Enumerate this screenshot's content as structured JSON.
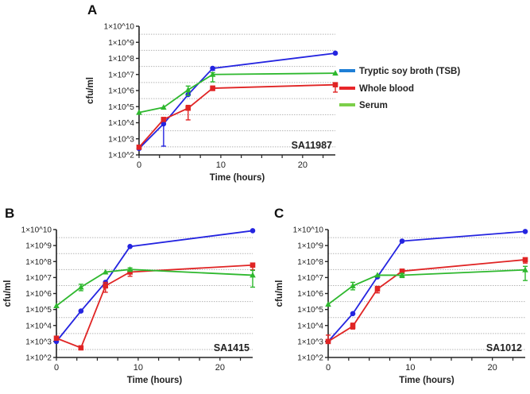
{
  "legend": {
    "position": "right of panel A",
    "entries": [
      {
        "label": "Tryptic soy broth (TSB)",
        "color": "#1f7fd6"
      },
      {
        "label": "Whole blood",
        "color": "#e8262a"
      },
      {
        "label": "Serum",
        "color": "#7ccf4a"
      }
    ]
  },
  "chart_data": [
    {
      "type": "line",
      "panel": "A",
      "annotation": "SA11987",
      "xlabel": "Time (hours)",
      "ylabel": "cfu/ml",
      "xlim": [
        0,
        24
      ],
      "ylim": [
        100,
        10000000000
      ],
      "yscale": "log",
      "x_ticks": [
        0,
        10,
        20
      ],
      "y_ticks": [
        "1×10^2",
        "1×10^3",
        "1×10^4",
        "1×10^5",
        "1×10^6",
        "1×10^7",
        "1×10^8",
        "1×10^9",
        "1×10^10"
      ],
      "grid": "dotted horizontal",
      "x": [
        0,
        3,
        6,
        9,
        24
      ],
      "series": [
        {
          "name": "Tryptic soy broth (TSB)",
          "color": "#2424e0",
          "marker": "circle",
          "values": [
            250,
            8500,
            560000,
            24000000,
            210000000
          ],
          "error": [
            null,
            [
              350,
              12000
            ],
            null,
            [
              18000000,
              28000000
            ],
            null
          ]
        },
        {
          "name": "Whole blood",
          "color": "#e02424",
          "marker": "square",
          "values": [
            300,
            16000,
            80000,
            1400000,
            2300000
          ],
          "error": [
            null,
            null,
            [
              15000,
              120000
            ],
            [
              1000000,
              1900000
            ],
            [
              800000,
              3000000
            ]
          ]
        },
        {
          "name": "Serum",
          "color": "#2eb82e",
          "marker": "triangle",
          "values": [
            43000,
            90000,
            1100000,
            10000000,
            12000000
          ],
          "error": [
            null,
            null,
            [
              500000,
              1900000
            ],
            [
              3500000,
              13000000
            ],
            null
          ]
        }
      ]
    },
    {
      "type": "line",
      "panel": "B",
      "annotation": "SA1415",
      "xlabel": "Time (hours)",
      "ylabel": "cfu/ml",
      "xlim": [
        0,
        24
      ],
      "ylim": [
        100,
        10000000000
      ],
      "yscale": "log",
      "x_ticks": [
        0,
        10,
        20
      ],
      "y_ticks": [
        "1×10^2",
        "1×10^3",
        "1×10^4",
        "1×10^5",
        "1×10^6",
        "1×10^7",
        "1×10^8",
        "1×10^9",
        "1×10^10"
      ],
      "grid": "dotted horizontal",
      "x": [
        0,
        3,
        6,
        9,
        24
      ],
      "series": [
        {
          "name": "Tryptic soy broth (TSB)",
          "color": "#2424e0",
          "marker": "circle",
          "values": [
            1000,
            80000,
            5000000,
            870000000,
            8500000000
          ],
          "error": [
            null,
            null,
            null,
            null,
            null
          ]
        },
        {
          "name": "Whole blood",
          "color": "#e02424",
          "marker": "square",
          "values": [
            1600,
            400,
            3000000,
            22000000,
            60000000
          ],
          "error": [
            null,
            [
              300,
              500
            ],
            [
              1200000,
              5000000
            ],
            [
              12000000,
              30000000
            ],
            [
              30000000,
              70000000
            ]
          ]
        },
        {
          "name": "Serum",
          "color": "#2eb82e",
          "marker": "triangle",
          "values": [
            170000,
            2500000,
            22000000,
            32000000,
            14000000
          ],
          "error": [
            null,
            [
              1500000,
              3800000
            ],
            null,
            [
              25000000,
              40000000
            ],
            [
              2500000,
              28000000
            ]
          ]
        }
      ]
    },
    {
      "type": "line",
      "panel": "C",
      "annotation": "SA1012",
      "xlabel": "Time (hours)",
      "ylabel": "cfu/ml",
      "xlim": [
        0,
        24
      ],
      "ylim": [
        100,
        10000000000
      ],
      "yscale": "log",
      "x_ticks": [
        0,
        10,
        20
      ],
      "y_ticks": [
        "1×10^2",
        "1×10^3",
        "1×10^4",
        "1×10^5",
        "1×10^6",
        "1×10^7",
        "1×10^8",
        "1×10^9",
        "1×10^10"
      ],
      "grid": "dotted horizontal",
      "x": [
        0,
        3,
        6,
        9,
        24
      ],
      "series": [
        {
          "name": "Tryptic soy broth (TSB)",
          "color": "#2424e0",
          "marker": "circle",
          "values": [
            1000,
            55000,
            11000000,
            1900000000,
            7600000000
          ],
          "error": [
            null,
            null,
            null,
            null,
            null
          ]
        },
        {
          "name": "Whole blood",
          "color": "#e02424",
          "marker": "square",
          "values": [
            1000,
            9000,
            1900000,
            25000000,
            130000000
          ],
          "error": [
            [
              1000,
              2500
            ],
            [
              6000,
              14000
            ],
            [
              1100000,
              2800000
            ],
            [
              18000000,
              30000000
            ],
            [
              80000000,
              160000000
            ]
          ]
        },
        {
          "name": "Serum",
          "color": "#2eb82e",
          "marker": "triangle",
          "values": [
            210000,
            3000000,
            14000000,
            14000000,
            30000000
          ],
          "error": [
            null,
            [
              1700000,
              5000000
            ],
            null,
            [
              10000000,
              18000000
            ],
            [
              6500000,
              50000000
            ]
          ]
        }
      ]
    }
  ]
}
